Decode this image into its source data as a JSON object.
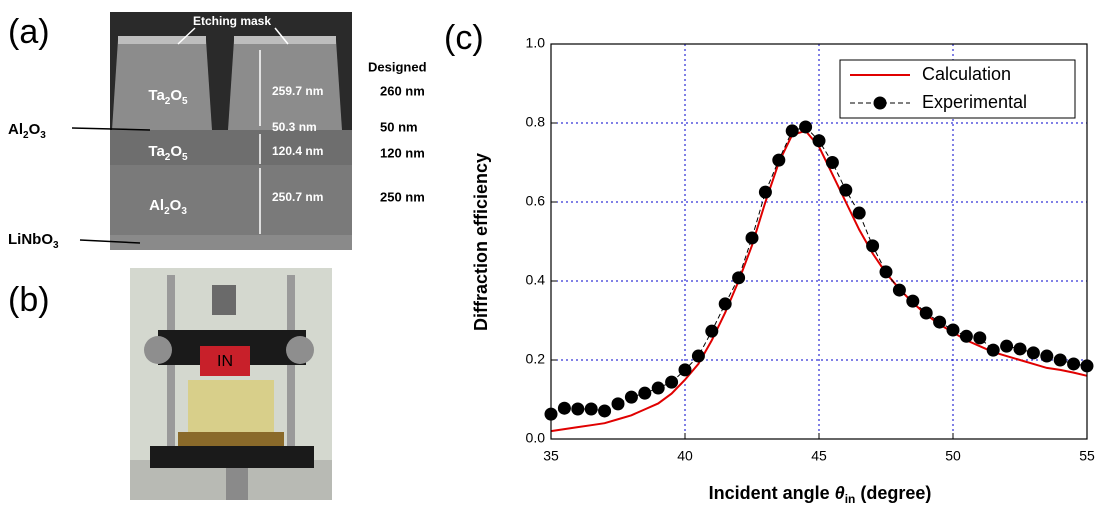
{
  "panels": {
    "a": {
      "label": "(a)",
      "etching_mask": "Etching mask",
      "layers": [
        "Ta2O5",
        "Ta2O5",
        "Al2O3"
      ],
      "side_labels": [
        "Al2O3",
        "LiNbO3"
      ],
      "measured": [
        "259.7 nm",
        "50.3 nm",
        "120.4 nm",
        "250.7 nm"
      ],
      "designed_title": "Designed",
      "designed": [
        "260 nm",
        "50 nm",
        "120 nm",
        "250 nm"
      ]
    },
    "b": {
      "label": "(b)",
      "tag": "IN"
    }
  },
  "chart_data": {
    "type": "line",
    "label": "(c)",
    "xlabel": [
      "Incident angle",
      "θ",
      "in",
      "(degree)"
    ],
    "ylabel": "Diffraction efficiency",
    "x": [
      35,
      35.5,
      36,
      36.5,
      37,
      37.5,
      38,
      38.5,
      39,
      39.5,
      40,
      40.5,
      41,
      41.5,
      42,
      42.5,
      43,
      43.5,
      44,
      44.5,
      45,
      45.5,
      46,
      46.5,
      47,
      47.5,
      48,
      48.5,
      49,
      49.5,
      50,
      50.5,
      51,
      51.5,
      52,
      52.5,
      53,
      53.5,
      54,
      54.5,
      55
    ],
    "series": [
      {
        "name": "Calculation",
        "color": "#e00000",
        "style": "line",
        "values": [
          0.02,
          0.025,
          0.03,
          0.035,
          0.04,
          0.05,
          0.06,
          0.075,
          0.09,
          0.115,
          0.15,
          0.19,
          0.25,
          0.32,
          0.4,
          0.49,
          0.6,
          0.7,
          0.77,
          0.78,
          0.74,
          0.67,
          0.6,
          0.53,
          0.47,
          0.42,
          0.38,
          0.345,
          0.315,
          0.29,
          0.27,
          0.25,
          0.235,
          0.22,
          0.21,
          0.2,
          0.19,
          0.18,
          0.175,
          0.168,
          0.16
        ]
      },
      {
        "name": "Experimental",
        "color": "#000000",
        "style": "dots",
        "values": [
          0.063,
          0.078,
          0.076,
          0.076,
          0.071,
          0.089,
          0.106,
          0.116,
          0.129,
          0.144,
          0.175,
          0.21,
          0.273,
          0.342,
          0.408,
          0.509,
          0.625,
          0.706,
          0.78,
          0.79,
          0.755,
          0.7,
          0.63,
          0.572,
          0.489,
          0.423,
          0.377,
          0.349,
          0.319,
          0.296,
          0.276,
          0.26,
          0.256,
          0.225,
          0.235,
          0.228,
          0.218,
          0.21,
          0.2,
          0.19,
          0.185
        ]
      }
    ],
    "xlim": [
      35,
      55
    ],
    "xticks": [
      35,
      40,
      45,
      50,
      55
    ],
    "ylim": [
      0,
      1
    ],
    "yticks": [
      {
        "value": 0,
        "label": "0.0"
      },
      0.2,
      0.4,
      0.6,
      0.8,
      {
        "value": 1,
        "label": "1.0"
      }
    ],
    "grid": true,
    "legend": "upper right"
  }
}
